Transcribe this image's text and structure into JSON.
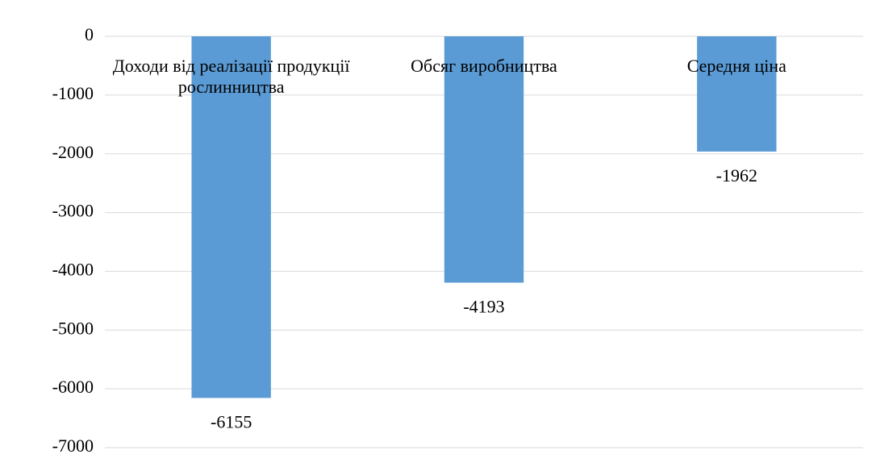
{
  "chart_data": {
    "type": "bar",
    "categories": [
      "Доходи від реалізації продукції рослинництва",
      "Обсяг виробництва",
      "Середня ціна"
    ],
    "values": [
      -6155,
      -4193,
      -1962
    ],
    "color": "#5b9bd5",
    "ylim": [
      -7000,
      0
    ],
    "yticks": [
      0,
      -1000,
      -2000,
      -3000,
      -4000,
      -5000,
      -6000,
      -7000
    ],
    "grid": true
  }
}
